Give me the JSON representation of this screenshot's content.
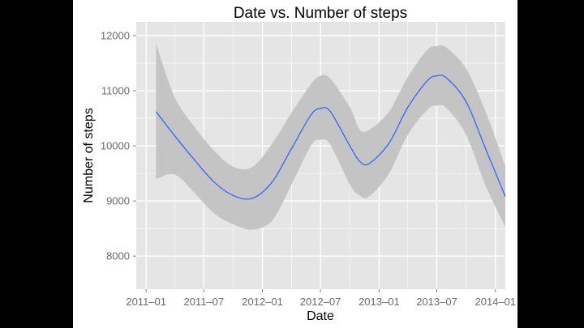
{
  "chart_data": {
    "type": "line",
    "title": "Date vs. Number of steps",
    "xlabel": "Date",
    "ylabel": "Number of steps",
    "x_ticks": [
      "2011-01",
      "2011-07",
      "2012-01",
      "2012-07",
      "2013-01",
      "2013-07",
      "2014-01"
    ],
    "x_range": [
      "2010-12",
      "2014-02"
    ],
    "y_ticks": [
      8000,
      9000,
      10000,
      11000,
      12000
    ],
    "ylim": [
      7400,
      12250
    ],
    "grid": true,
    "legend": "none",
    "colors": {
      "panel": "#e5e5e5",
      "grid": "#ffffff",
      "line": "#3366ff",
      "band": "#c4c4c4"
    },
    "series": [
      {
        "x": [
          "2011-02-01",
          "2011-04-01",
          "2011-06-01",
          "2011-08-01",
          "2011-10-01",
          "2011-12-01",
          "2012-02-01",
          "2012-04-01",
          "2012-06-01",
          "2012-07-01",
          "2012-08-01",
          "2012-10-01",
          "2012-11-01",
          "2012-12-01",
          "2013-02-01",
          "2013-04-01",
          "2013-06-01",
          "2013-07-01",
          "2013-08-01",
          "2013-10-01",
          "2013-12-01",
          "2014-02-01"
        ],
        "y": [
          10620,
          10180,
          9750,
          9350,
          9100,
          9050,
          9350,
          9950,
          10560,
          10680,
          10620,
          10000,
          9720,
          9680,
          10050,
          10700,
          11180,
          11270,
          11230,
          10800,
          9950,
          9080
        ],
        "lower": [
          9400,
          9480,
          9150,
          8780,
          8580,
          8480,
          8650,
          9300,
          10000,
          10110,
          10020,
          9300,
          9100,
          9080,
          9500,
          10200,
          10650,
          10730,
          10680,
          10200,
          9280,
          8530
        ],
        "upper": [
          11850,
          10880,
          10350,
          9920,
          9620,
          9620,
          10050,
          10600,
          11120,
          11270,
          11220,
          10700,
          10300,
          10290,
          10620,
          11250,
          11740,
          11810,
          11780,
          11400,
          10620,
          9630
        ]
      }
    ]
  }
}
